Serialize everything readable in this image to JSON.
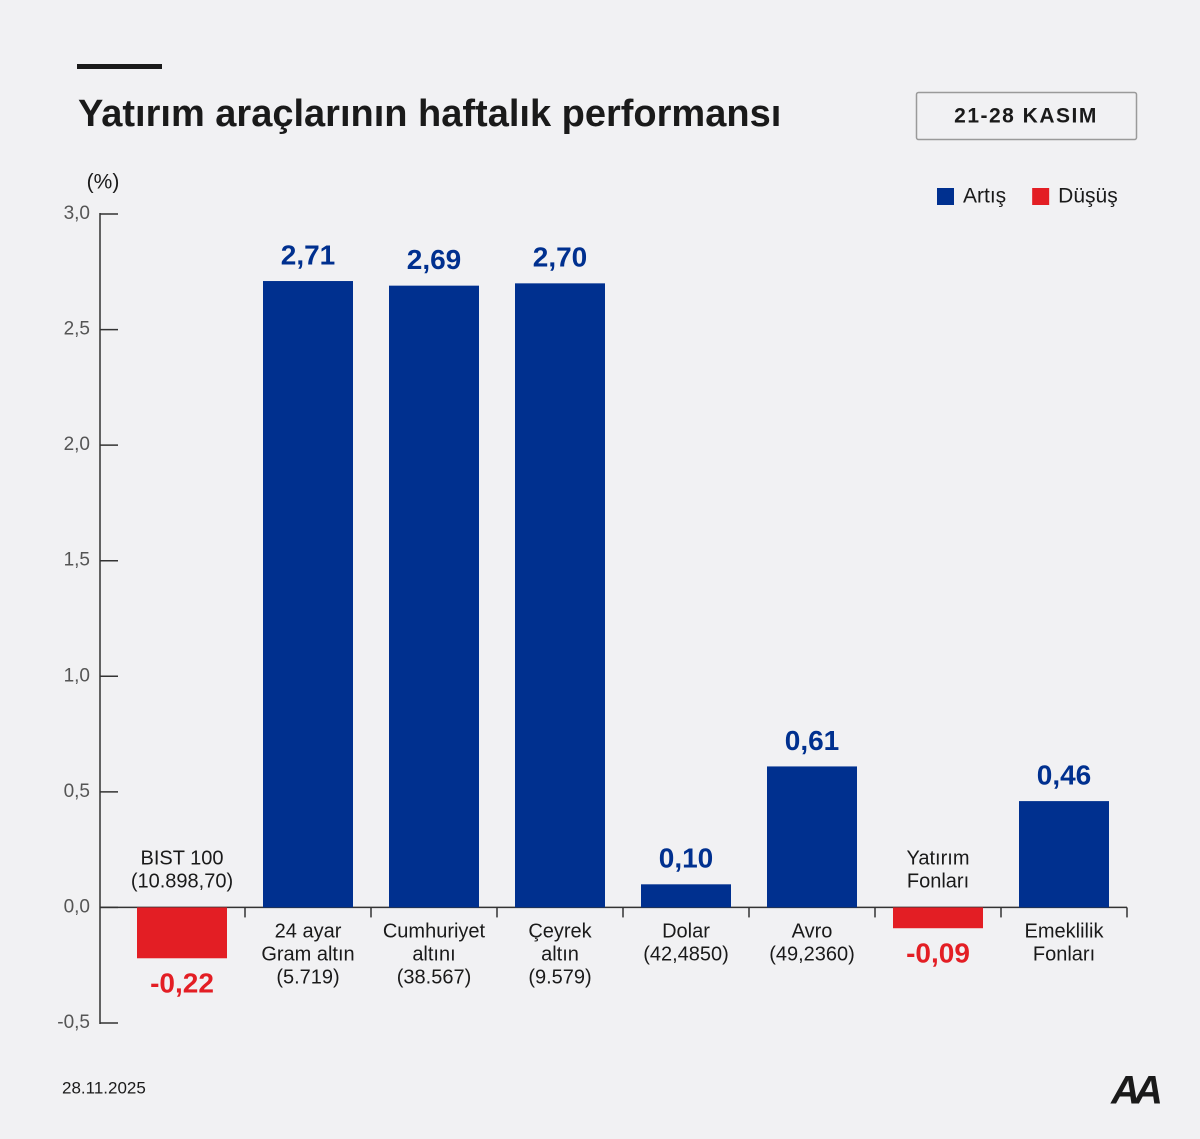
{
  "chart_data": {
    "type": "bar",
    "title": "Yatırım araçlarının haftalık performansı",
    "badge": "21-28 KASIM",
    "y_unit": "(%)",
    "date": "28.11.2025",
    "logo": "AA",
    "legend": [
      {
        "name": "Artış",
        "color": "#00308f"
      },
      {
        "name": "Düşüş",
        "color": "#e31e24"
      }
    ],
    "categories": [
      [
        "BIST 100",
        "(10.898,70)"
      ],
      [
        "24 ayar",
        "Gram altın",
        "(5.719)"
      ],
      [
        "Cumhuriyet",
        "altını",
        "(38.567)"
      ],
      [
        "Çeyrek",
        "altın",
        "(9.579)"
      ],
      [
        "Dolar",
        "(42,4850)"
      ],
      [
        "Avro",
        "(49,2360)"
      ],
      [
        "Yatırım",
        "Fonları"
      ],
      [
        "Emeklilik",
        "Fonları"
      ]
    ],
    "values": [
      -0.22,
      2.71,
      2.69,
      2.7,
      0.1,
      0.61,
      -0.09,
      0.46
    ],
    "value_labels": [
      "-0,22",
      "2,71",
      "2,69",
      "2,70",
      "0,10",
      "0,61",
      "-0,09",
      "0,46"
    ],
    "ylim": [
      -0.5,
      3.0
    ],
    "yticks": [
      {
        "value": -0.5,
        "label": "-0,5"
      },
      {
        "value": 0,
        "label": "0,0"
      },
      {
        "value": 0.5,
        "label": "0,5"
      },
      {
        "value": 1,
        "label": "1,0"
      },
      {
        "value": 1.5,
        "label": "1,5"
      },
      {
        "value": 2,
        "label": "2,0"
      },
      {
        "value": 2.5,
        "label": "2,5"
      },
      {
        "value": 3,
        "label": "3,0"
      }
    ]
  }
}
